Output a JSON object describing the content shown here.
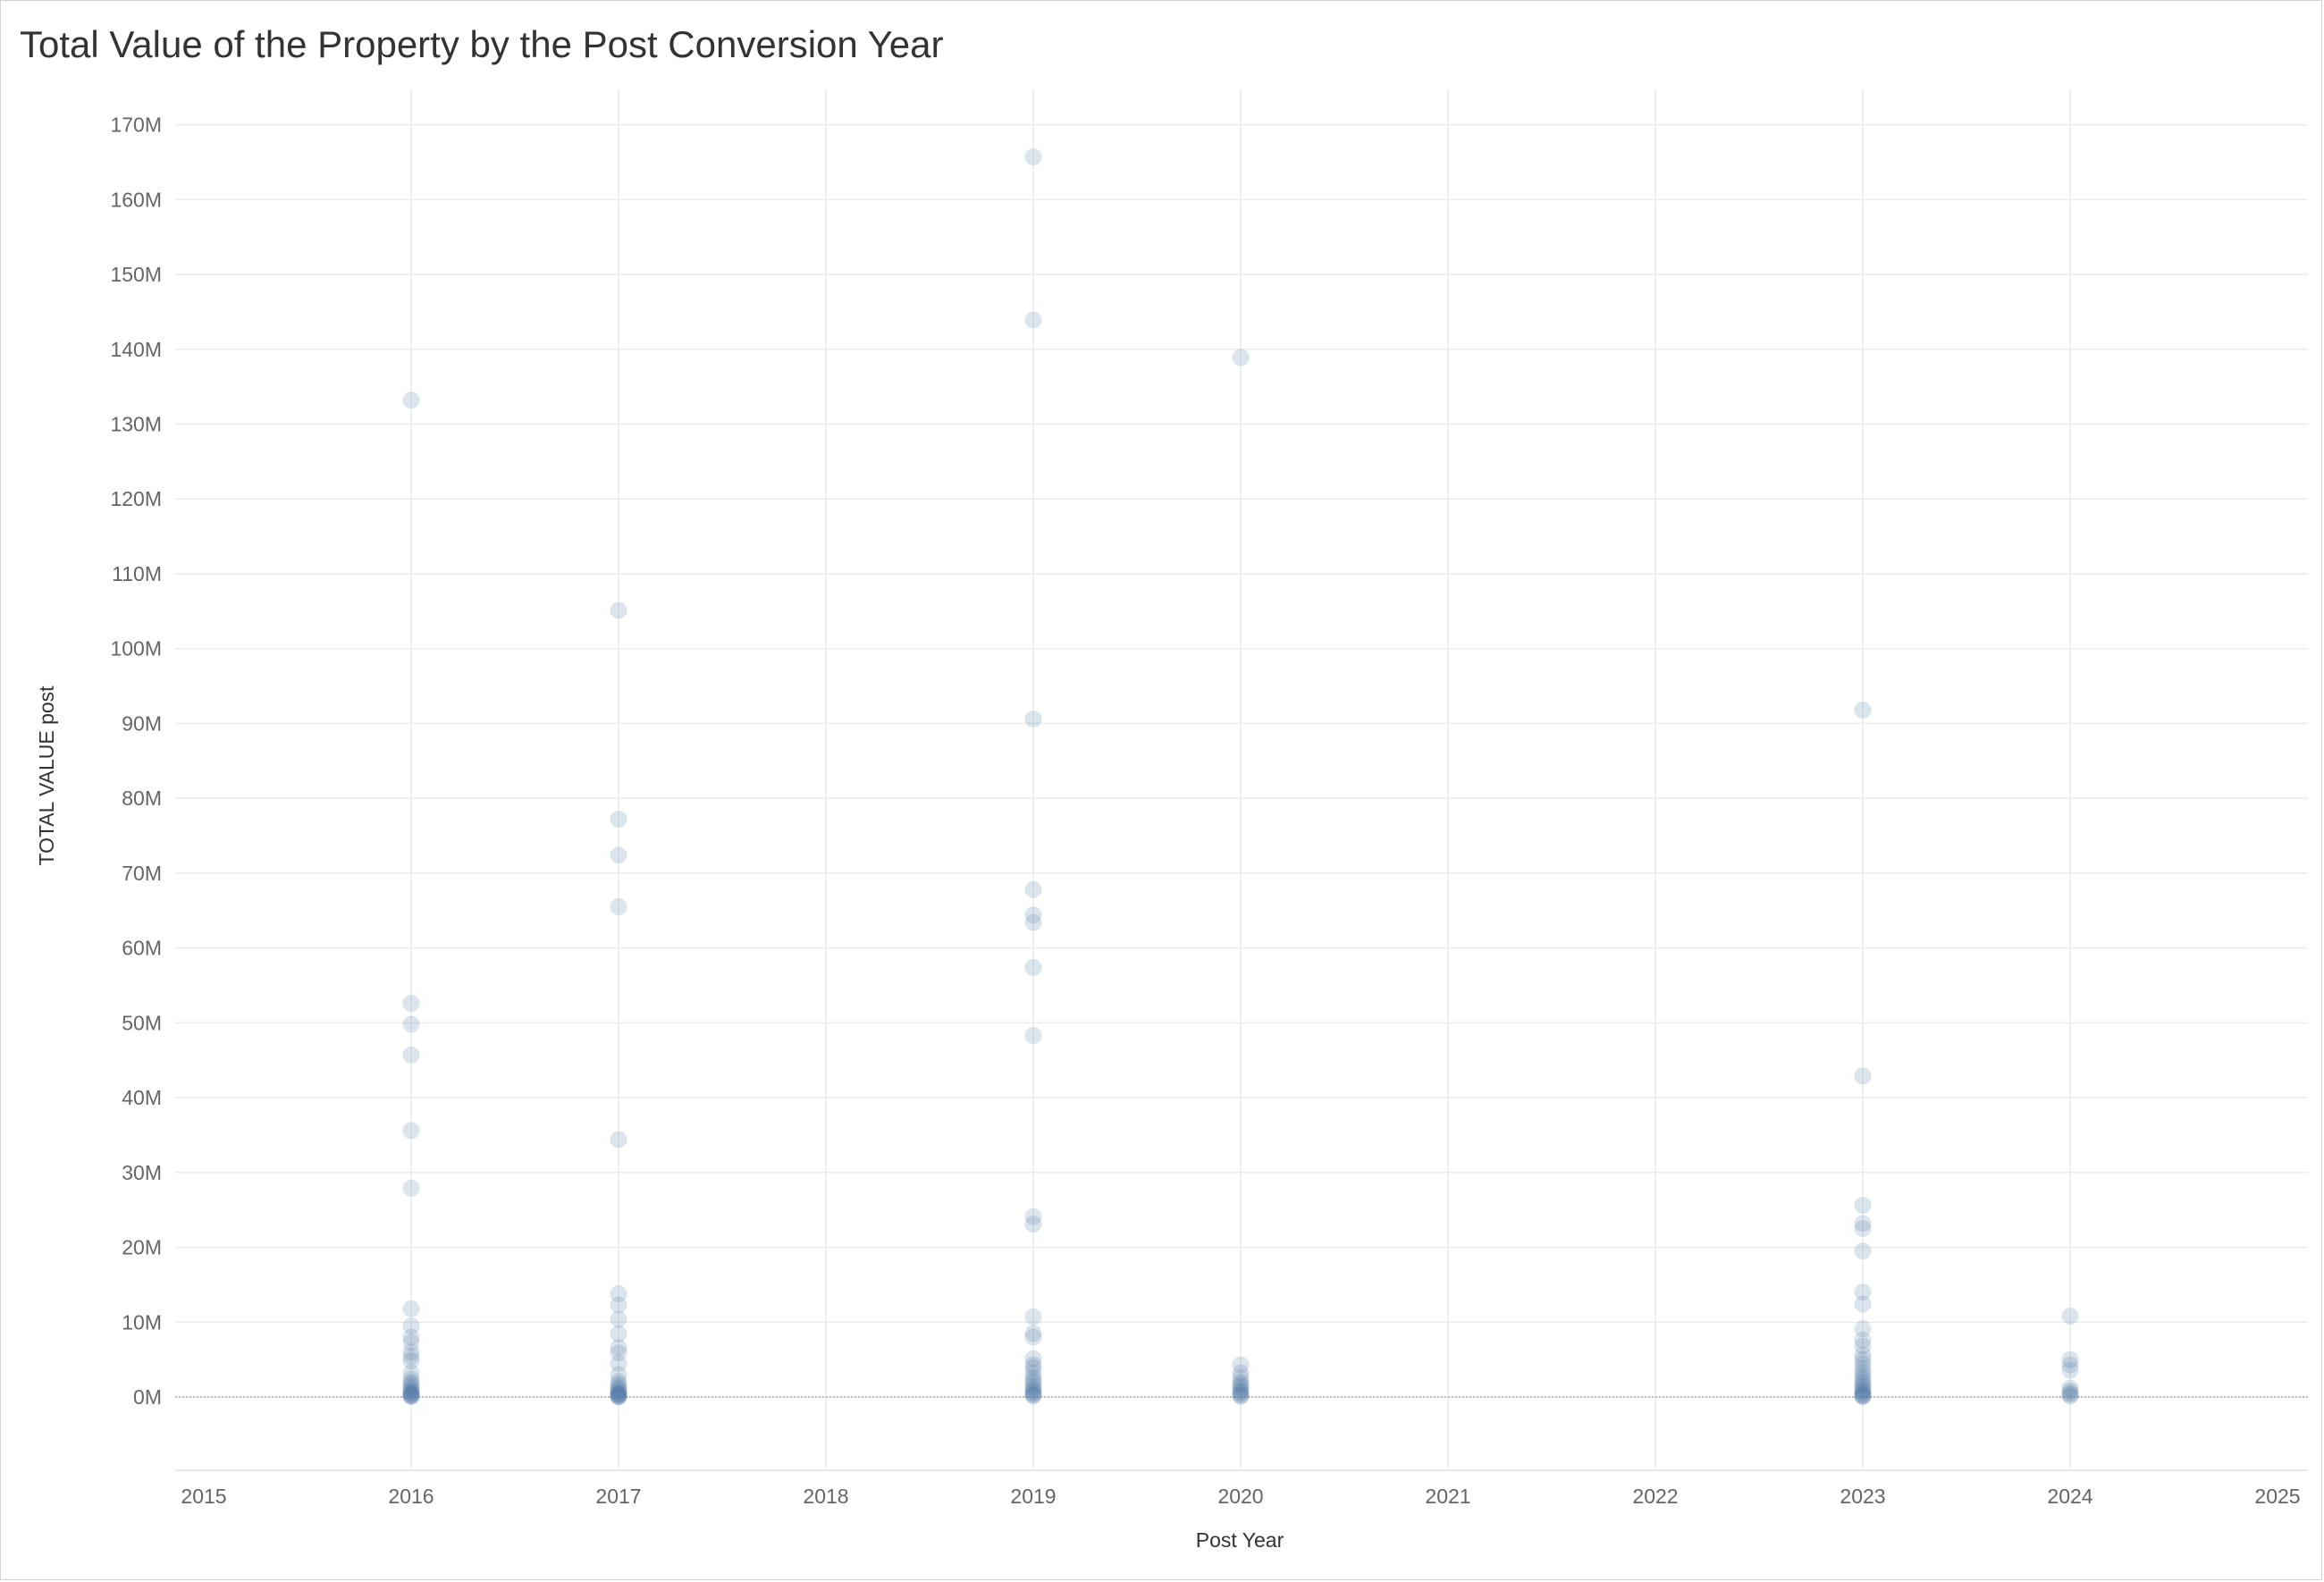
{
  "chart_data": {
    "type": "scatter",
    "title": "Total Value of the Property by the Post Conversion Year",
    "xlabel": "Post Year",
    "ylabel": "TOTAL VALUE post",
    "xlim": [
      2015,
      2025
    ],
    "ylim": [
      -10,
      170
    ],
    "x_ticks": [
      2015,
      2016,
      2017,
      2018,
      2019,
      2020,
      2021,
      2022,
      2023,
      2024,
      2025
    ],
    "x_tick_labels": [
      "2015",
      "2016",
      "2017",
      "2018",
      "2019",
      "2020",
      "2021",
      "2022",
      "2023",
      "2024",
      "2025"
    ],
    "y_ticks": [
      0,
      10,
      20,
      30,
      40,
      50,
      60,
      70,
      80,
      90,
      100,
      110,
      120,
      130,
      140,
      150,
      160,
      170
    ],
    "y_tick_labels": [
      "0M",
      "10M",
      "20M",
      "30M",
      "40M",
      "50M",
      "60M",
      "70M",
      "80M",
      "90M",
      "100M",
      "110M",
      "120M",
      "130M",
      "140M",
      "150M",
      "160M",
      "170M"
    ],
    "y_unit": "M",
    "grid": true,
    "marker_color": "#4e79a7",
    "marker_opacity": 0.2,
    "series": [
      {
        "x": [
          2016,
          2016,
          2016,
          2016,
          2016,
          2016,
          2016,
          2016,
          2016,
          2016,
          2016,
          2016,
          2016,
          2016,
          2016,
          2016,
          2016,
          2016,
          2016,
          2016,
          2016,
          2016,
          2016,
          2016,
          2016,
          2016,
          2016,
          2017,
          2017,
          2017,
          2017,
          2017,
          2017,
          2017,
          2017,
          2017,
          2017,
          2017,
          2017,
          2017,
          2017,
          2017,
          2017,
          2017,
          2017,
          2017,
          2017,
          2017,
          2017,
          2017,
          2017,
          2017,
          2017,
          2019,
          2019,
          2019,
          2019,
          2019,
          2019,
          2019,
          2019,
          2019,
          2019,
          2019,
          2019,
          2019,
          2019,
          2019,
          2019,
          2019,
          2019,
          2019,
          2019,
          2019,
          2019,
          2019,
          2019,
          2019,
          2019,
          2019,
          2020,
          2020,
          2020,
          2020,
          2020,
          2020,
          2020,
          2020,
          2020,
          2020,
          2020,
          2020,
          2020,
          2023,
          2023,
          2023,
          2023,
          2023,
          2023,
          2023,
          2023,
          2023,
          2023,
          2023,
          2023,
          2023,
          2023,
          2023,
          2023,
          2023,
          2023,
          2023,
          2023,
          2023,
          2023,
          2023,
          2023,
          2023,
          2023,
          2023,
          2023,
          2023,
          2024,
          2024,
          2024,
          2024,
          2024,
          2024,
          2024,
          2024,
          2024
        ],
        "y": [
          133.2,
          52.6,
          49.8,
          45.7,
          35.6,
          27.9,
          11.8,
          9.5,
          8.0,
          7.3,
          6.0,
          5.4,
          4.8,
          3.2,
          2.4,
          2.0,
          1.7,
          1.4,
          1.1,
          0.9,
          0.7,
          0.5,
          0.4,
          0.3,
          0.2,
          0.1,
          0.05,
          105.1,
          77.2,
          72.4,
          65.5,
          34.4,
          13.8,
          12.3,
          10.4,
          8.4,
          6.6,
          5.9,
          4.5,
          3.0,
          2.1,
          1.7,
          1.4,
          1.1,
          0.9,
          0.7,
          0.5,
          0.4,
          0.3,
          0.2,
          0.1,
          0.05,
          0.02,
          165.7,
          143.9,
          90.6,
          67.8,
          64.4,
          63.4,
          57.4,
          48.3,
          24.1,
          23.1,
          10.7,
          8.5,
          8.0,
          5.1,
          4.3,
          3.9,
          3.2,
          2.6,
          2.2,
          1.8,
          1.4,
          1.1,
          0.8,
          0.6,
          0.4,
          0.25,
          0.1,
          138.9,
          4.3,
          3.2,
          2.6,
          2.0,
          1.7,
          1.4,
          1.1,
          0.8,
          0.6,
          0.4,
          0.2,
          0.05,
          91.8,
          42.9,
          25.6,
          23.2,
          22.5,
          19.5,
          14.0,
          12.4,
          9.1,
          7.6,
          6.8,
          5.6,
          5.0,
          4.4,
          3.8,
          3.3,
          2.8,
          2.4,
          2.0,
          1.7,
          1.4,
          1.1,
          0.9,
          0.7,
          0.5,
          0.35,
          0.2,
          0.1,
          0.03,
          10.8,
          5.0,
          4.3,
          3.6,
          1.2,
          0.8,
          0.5,
          0.3,
          0.1
        ]
      }
    ]
  }
}
